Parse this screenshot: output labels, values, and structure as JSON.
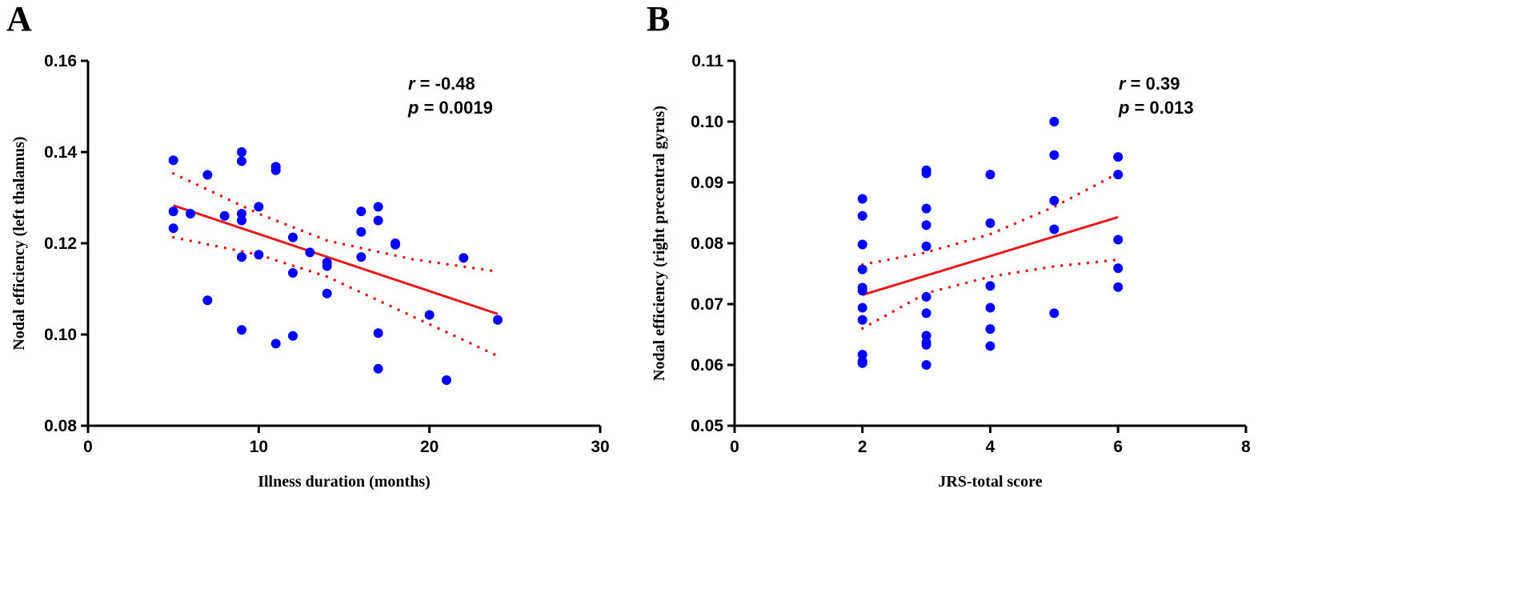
{
  "chart_data": [
    {
      "type": "scatter",
      "panel_label": "A",
      "xlabel": "Illness duration (months)",
      "ylabel": "Nodal efficiency (left thalamus)",
      "xlim": [
        0,
        30
      ],
      "ylim": [
        0.08,
        0.16
      ],
      "xticks": [
        "0",
        "10",
        "20",
        "30"
      ],
      "xtick_values": [
        0,
        10,
        20,
        30
      ],
      "yticks": [
        "0.08",
        "0.10",
        "0.12",
        "0.14",
        "0.16"
      ],
      "ytick_values": [
        0.08,
        0.1,
        0.12,
        0.14,
        0.16
      ],
      "annotation_r": "r",
      "annotation_r_value": " = -0.48",
      "annotation_p": "p",
      "annotation_p_value": " = 0.0019",
      "point_color": "#0000ff",
      "line_color": "#e8191c",
      "points": [
        [
          5,
          0.1382
        ],
        [
          5,
          0.127
        ],
        [
          5,
          0.1233
        ],
        [
          6,
          0.1265
        ],
        [
          7,
          0.135
        ],
        [
          7,
          0.1075
        ],
        [
          8,
          0.126
        ],
        [
          9,
          0.14
        ],
        [
          9,
          0.138
        ],
        [
          9,
          0.1265
        ],
        [
          9,
          0.125
        ],
        [
          9,
          0.117
        ],
        [
          9,
          0.101
        ],
        [
          10,
          0.128
        ],
        [
          10,
          0.1175
        ],
        [
          11,
          0.1368
        ],
        [
          11,
          0.136
        ],
        [
          11,
          0.098
        ],
        [
          12,
          0.1213
        ],
        [
          12,
          0.1135
        ],
        [
          12,
          0.0997
        ],
        [
          13,
          0.118
        ],
        [
          14,
          0.1158
        ],
        [
          14,
          0.115
        ],
        [
          14,
          0.109
        ],
        [
          16,
          0.127
        ],
        [
          16,
          0.1225
        ],
        [
          16,
          0.117
        ],
        [
          17,
          0.128
        ],
        [
          17,
          0.125
        ],
        [
          17,
          0.1003
        ],
        [
          17,
          0.0925
        ],
        [
          18,
          0.12
        ],
        [
          18,
          0.1197
        ],
        [
          20,
          0.1043
        ],
        [
          21,
          0.09
        ],
        [
          22,
          0.1168
        ],
        [
          24,
          0.1032
        ]
      ],
      "fit": [
        [
          5,
          0.1283
        ],
        [
          24,
          0.1045
        ]
      ],
      "ci_upper": [
        [
          5,
          0.1353
        ],
        [
          10,
          0.1265
        ],
        [
          14,
          0.1206
        ],
        [
          19,
          0.1165
        ],
        [
          24,
          0.1138
        ]
      ],
      "ci_lower": [
        [
          5,
          0.1213
        ],
        [
          10,
          0.1175
        ],
        [
          14,
          0.1127
        ],
        [
          19,
          0.104
        ],
        [
          24,
          0.0953
        ]
      ]
    },
    {
      "type": "scatter",
      "panel_label": "B",
      "xlabel": "JRS-total score",
      "ylabel": "Nodal efficiency (right precentral gyrus)",
      "xlim": [
        0,
        8
      ],
      "ylim": [
        0.05,
        0.11
      ],
      "xticks": [
        "0",
        "2",
        "4",
        "6",
        "8"
      ],
      "xtick_values": [
        0,
        2,
        4,
        6,
        8
      ],
      "yticks": [
        "0.05",
        "0.06",
        "0.07",
        "0.08",
        "0.09",
        "0.10",
        "0.11"
      ],
      "ytick_values": [
        0.05,
        0.06,
        0.07,
        0.08,
        0.09,
        0.1,
        0.11
      ],
      "annotation_r": "r",
      "annotation_r_value": " = 0.39",
      "annotation_p": "p",
      "annotation_p_value": " = 0.013",
      "point_color": "#0000ff",
      "line_color": "#e8191c",
      "points": [
        [
          2,
          0.0873
        ],
        [
          2,
          0.0845
        ],
        [
          2,
          0.0798
        ],
        [
          2,
          0.0757
        ],
        [
          2,
          0.0727
        ],
        [
          2,
          0.0722
        ],
        [
          2,
          0.0694
        ],
        [
          2,
          0.0674
        ],
        [
          2,
          0.0617
        ],
        [
          2,
          0.0606
        ],
        [
          2,
          0.0603
        ],
        [
          3,
          0.092
        ],
        [
          3,
          0.0915
        ],
        [
          3,
          0.0857
        ],
        [
          3,
          0.083
        ],
        [
          3,
          0.0795
        ],
        [
          3,
          0.0712
        ],
        [
          3,
          0.0685
        ],
        [
          3,
          0.0648
        ],
        [
          3,
          0.0637
        ],
        [
          3,
          0.0633
        ],
        [
          3,
          0.06
        ],
        [
          4,
          0.0913
        ],
        [
          4,
          0.0833
        ],
        [
          4,
          0.073
        ],
        [
          4,
          0.0694
        ],
        [
          4,
          0.0659
        ],
        [
          4,
          0.0631
        ],
        [
          5,
          0.1
        ],
        [
          5,
          0.0945
        ],
        [
          5,
          0.087
        ],
        [
          5,
          0.0823
        ],
        [
          5,
          0.0685
        ],
        [
          6,
          0.0942
        ],
        [
          6,
          0.0913
        ],
        [
          6,
          0.0806
        ],
        [
          6,
          0.0759
        ],
        [
          6,
          0.0728
        ]
      ],
      "fit": [
        [
          2,
          0.0715
        ],
        [
          6,
          0.0843
        ]
      ],
      "ci_upper": [
        [
          2,
          0.0765
        ],
        [
          3,
          0.0785
        ],
        [
          4,
          0.0815
        ],
        [
          5,
          0.086
        ],
        [
          6,
          0.0915
        ]
      ],
      "ci_lower": [
        [
          2,
          0.066
        ],
        [
          3,
          0.0718
        ],
        [
          4,
          0.0745
        ],
        [
          5,
          0.0762
        ],
        [
          6,
          0.0773
        ]
      ]
    }
  ]
}
